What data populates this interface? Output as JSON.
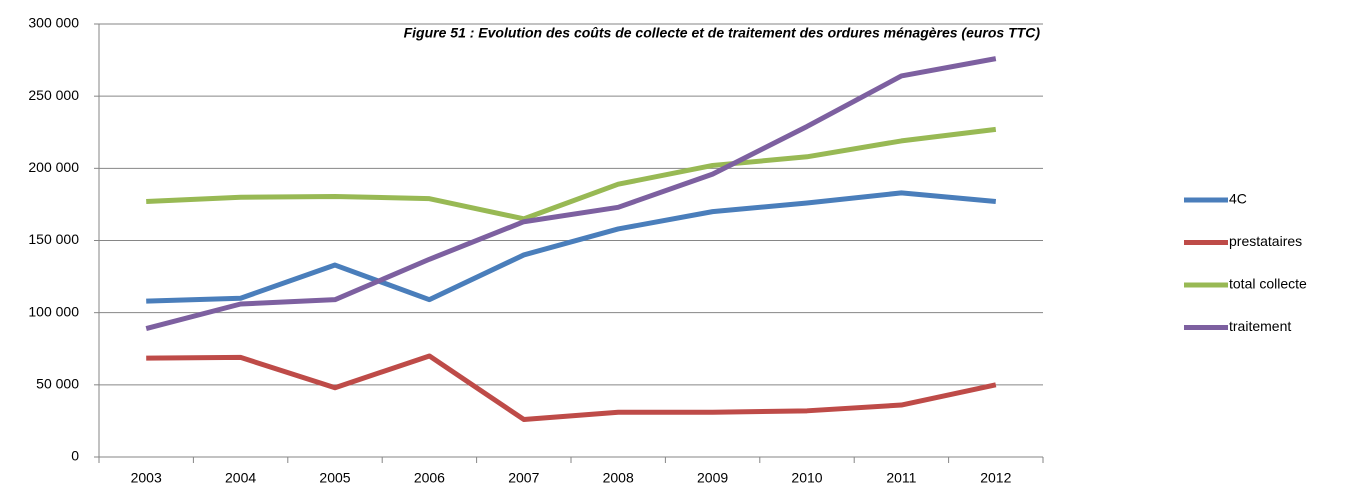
{
  "chart_data": {
    "type": "line",
    "title": "Figure 51 : Evolution des coûts de collecte et de traitement des ordures ménagères (euros TTC)",
    "categories": [
      "2003",
      "2004",
      "2005",
      "2006",
      "2007",
      "2008",
      "2009",
      "2010",
      "2011",
      "2012"
    ],
    "series": [
      {
        "name": "4C",
        "color": "#4a7ebb",
        "values": [
          108000,
          110000,
          133000,
          109000,
          140000,
          158000,
          170000,
          176000,
          183000,
          177000
        ]
      },
      {
        "name": "prestataires",
        "color": "#be4b48",
        "values": [
          68500,
          69000,
          48000,
          70000,
          26000,
          31000,
          31000,
          32000,
          36000,
          50000
        ]
      },
      {
        "name": "total collecte",
        "color": "#98b954",
        "values": [
          177000,
          180000,
          180500,
          179000,
          165000,
          189000,
          202000,
          208000,
          219000,
          227000
        ]
      },
      {
        "name": "traitement",
        "color": "#7d60a0",
        "values": [
          89000,
          106000,
          109000,
          137000,
          163000,
          173000,
          196000,
          229000,
          264000,
          276000
        ]
      }
    ],
    "ylim": [
      0,
      300000
    ],
    "yticks": [
      0,
      {
        "value": 50000,
        "label": "50 000"
      },
      {
        "value": 100000,
        "label": "100 000"
      },
      {
        "value": 150000,
        "label": "150 000"
      },
      {
        "value": 200000,
        "label": "200 000"
      },
      {
        "value": 250000,
        "label": "250 000"
      },
      {
        "value": 300000,
        "label": "300 000"
      }
    ],
    "grid": true,
    "legend": "right"
  }
}
